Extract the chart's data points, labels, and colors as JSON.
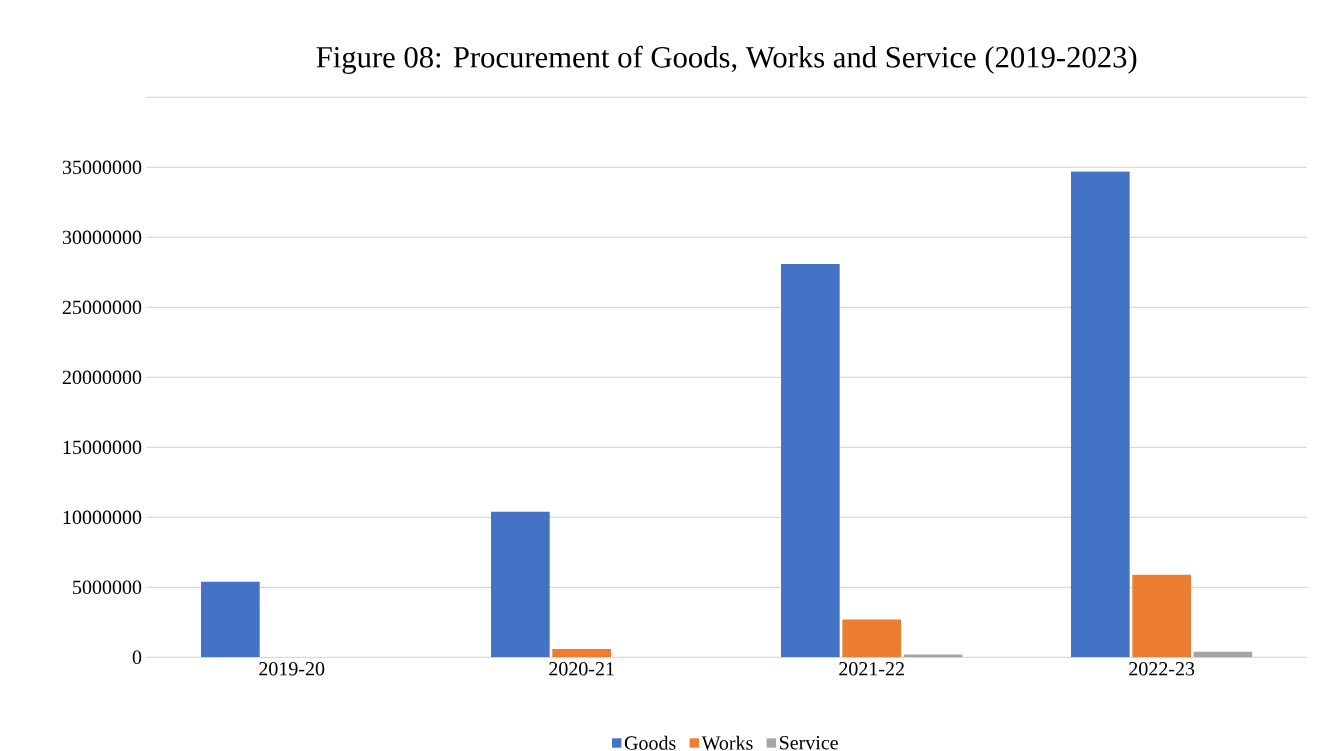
{
  "chart_data": {
    "type": "bar",
    "title": "Figure 08: Procurement of Goods, Works and Service (2019-2023)",
    "categories": [
      "2019-20",
      "2020-21",
      "2021-22",
      "2022-23"
    ],
    "series": [
      {
        "name": "Goods",
        "color": "#4472c4",
        "values": [
          5400000,
          10400000,
          28100000,
          34700000
        ]
      },
      {
        "name": "Works",
        "color": "#ed7d31",
        "values": [
          null,
          600000,
          2700000,
          5900000
        ]
      },
      {
        "name": "Service",
        "color": "#a5a5a5",
        "values": [
          null,
          null,
          200000,
          400000
        ]
      }
    ],
    "ylim": [
      0,
      40000000
    ],
    "yticks": [
      0,
      5000000,
      10000000,
      15000000,
      20000000,
      25000000,
      30000000,
      35000000,
      {
        "value": 40000000,
        "label": null
      }
    ],
    "grid": "y",
    "legend": "bottom"
  }
}
